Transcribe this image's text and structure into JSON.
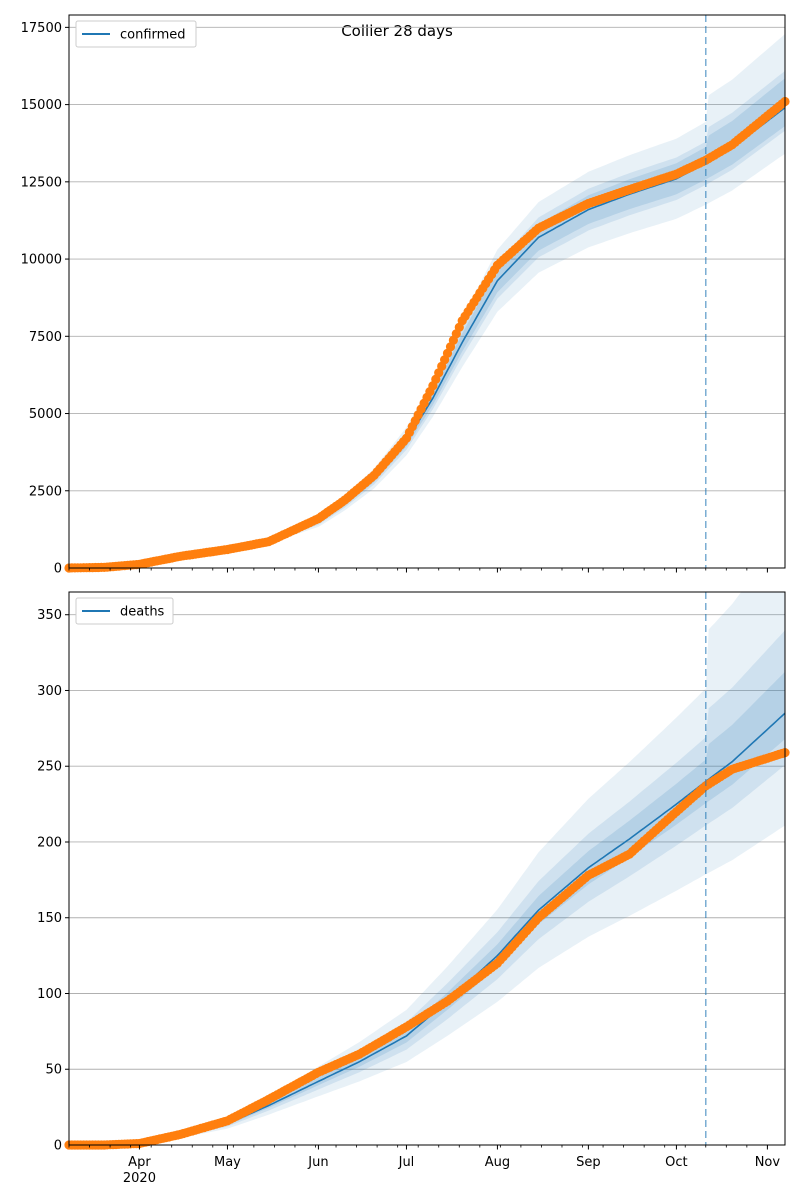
{
  "title": "Collier 28 days",
  "colors": {
    "model": "#1f77b4",
    "observed": "#ff7f0e",
    "band": "#1f77b4",
    "grid": "#b0b0b0"
  },
  "x_axis": {
    "start": "2020-03-08",
    "end": "2020-11-07",
    "month_ticks": [
      {
        "date": "2020-04-01",
        "label": "Apr",
        "sublabel": "2020"
      },
      {
        "date": "2020-05-01",
        "label": "May",
        "sublabel": ""
      },
      {
        "date": "2020-06-01",
        "label": "Jun",
        "sublabel": ""
      },
      {
        "date": "2020-07-01",
        "label": "Jul",
        "sublabel": ""
      },
      {
        "date": "2020-08-01",
        "label": "Aug",
        "sublabel": ""
      },
      {
        "date": "2020-09-01",
        "label": "Sep",
        "sublabel": ""
      },
      {
        "date": "2020-10-01",
        "label": "Oct",
        "sublabel": ""
      },
      {
        "date": "2020-11-01",
        "label": "Nov",
        "sublabel": ""
      }
    ]
  },
  "chart_data": [
    {
      "type": "line",
      "id": "confirmed",
      "legend": "confirmed",
      "legend_position": "top-left",
      "ylim": [
        0,
        17900
      ],
      "yticks": [
        0,
        2500,
        5000,
        7500,
        10000,
        12500,
        15000,
        17500
      ],
      "grid": "horizontal",
      "forecast_start": "2020-10-11",
      "model": {
        "x": [
          "2020-03-08",
          "2020-03-20",
          "2020-04-01",
          "2020-04-15",
          "2020-05-01",
          "2020-05-15",
          "2020-06-01",
          "2020-06-10",
          "2020-06-20",
          "2020-07-01",
          "2020-07-10",
          "2020-07-20",
          "2020-08-01",
          "2020-08-15",
          "2020-09-01",
          "2020-09-15",
          "2020-10-01",
          "2020-10-11",
          "2020-10-20",
          "2020-11-07"
        ],
        "values": [
          0,
          30,
          150,
          400,
          650,
          900,
          1500,
          2100,
          2900,
          4100,
          5500,
          7300,
          9300,
          10700,
          11600,
          12100,
          12600,
          13100,
          13600,
          14900
        ],
        "band_inner": [
          0.04,
          0.04
        ],
        "band_mid": [
          0.08,
          0.05
        ],
        "band_outer": [
          0.12,
          0.1
        ]
      },
      "observed": {
        "x": [
          "2020-03-08",
          "2020-03-20",
          "2020-04-01",
          "2020-04-15",
          "2020-05-01",
          "2020-05-15",
          "2020-06-01",
          "2020-06-10",
          "2020-06-20",
          "2020-07-01",
          "2020-07-10",
          "2020-07-20",
          "2020-08-01",
          "2020-08-15",
          "2020-09-01",
          "2020-09-15",
          "2020-10-01",
          "2020-10-11",
          "2020-10-20",
          "2020-11-07"
        ],
        "values": [
          0,
          20,
          120,
          380,
          600,
          850,
          1600,
          2200,
          3000,
          4200,
          5900,
          8000,
          9800,
          11000,
          11800,
          12250,
          12750,
          13200,
          13700,
          15100
        ]
      }
    },
    {
      "type": "line",
      "id": "deaths",
      "legend": "deaths",
      "legend_position": "top-left",
      "ylim": [
        0,
        365
      ],
      "yticks": [
        0,
        50,
        100,
        150,
        200,
        250,
        300,
        350
      ],
      "grid": "horizontal",
      "forecast_start": "2020-10-11",
      "model": {
        "x": [
          "2020-03-08",
          "2020-03-20",
          "2020-04-01",
          "2020-04-15",
          "2020-05-01",
          "2020-05-15",
          "2020-06-01",
          "2020-06-15",
          "2020-07-01",
          "2020-07-15",
          "2020-08-01",
          "2020-08-15",
          "2020-09-01",
          "2020-09-15",
          "2020-10-01",
          "2020-10-11",
          "2020-10-20",
          "2020-11-07"
        ],
        "values": [
          0,
          0.5,
          2,
          6,
          14,
          26,
          42,
          55,
          72,
          95,
          125,
          155,
          183,
          202,
          225,
          240,
          253,
          285
        ],
        "band_inner": [
          0.06,
          0.06
        ],
        "band_mid": [
          0.13,
          0.12
        ],
        "band_outer": [
          0.22,
          0.26
        ]
      },
      "observed": {
        "x": [
          "2020-03-08",
          "2020-03-20",
          "2020-04-01",
          "2020-04-15",
          "2020-05-01",
          "2020-05-15",
          "2020-06-01",
          "2020-06-15",
          "2020-07-01",
          "2020-07-15",
          "2020-08-01",
          "2020-08-15",
          "2020-09-01",
          "2020-09-15",
          "2020-10-01",
          "2020-10-11",
          "2020-10-20",
          "2020-11-07"
        ],
        "values": [
          0,
          0,
          1,
          7,
          16,
          30,
          48,
          60,
          78,
          95,
          120,
          150,
          178,
          192,
          220,
          237,
          248,
          259
        ]
      }
    }
  ]
}
